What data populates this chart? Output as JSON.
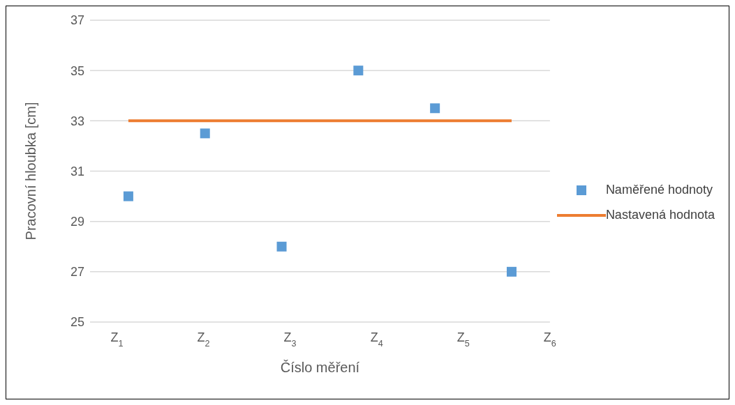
{
  "chart_data": {
    "type": "scatter",
    "xlabel": "Číslo měření",
    "ylabel": "Pracovní hloubka [cm]",
    "x": [
      1,
      2,
      3,
      4,
      5,
      6
    ],
    "series": [
      {
        "name": "Naměřené hodnoty",
        "marker": "square",
        "color": "#5b9bd5",
        "values": [
          30,
          32.5,
          28,
          35,
          33.5,
          27
        ]
      },
      {
        "name": "Nastavená hodnota",
        "type": "line",
        "marker": "none",
        "line_style": "solid",
        "color": "#ed7d31",
        "x": [
          1,
          6
        ],
        "values": [
          33,
          33
        ]
      }
    ],
    "xlim": [
      0.5,
      6.5
    ],
    "xticks": [
      {
        "value": 0.85,
        "label": "Z$_{1}$"
      },
      {
        "value": 1.98,
        "label": "Z$_{2}$"
      },
      {
        "value": 3.11,
        "label": "Z$_{3}$"
      },
      {
        "value": 4.24,
        "label": "Z$_{4}$"
      },
      {
        "value": 5.37,
        "label": "Z$_{5}$"
      },
      {
        "value": 6.5,
        "label": "Z$_{6}$"
      }
    ],
    "ylim": [
      25,
      37
    ],
    "yticks": [
      25,
      27,
      29,
      31,
      33,
      35,
      37
    ],
    "grid": "y",
    "legend": "right"
  }
}
